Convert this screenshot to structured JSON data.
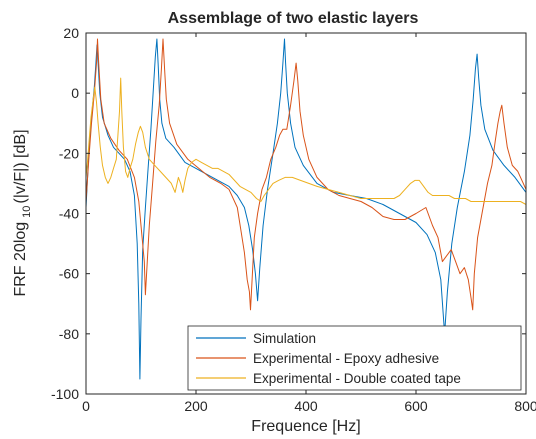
{
  "chart_data": {
    "type": "line",
    "title": "Assemblage of two elastic layers",
    "xlabel": "Frequence [Hz]",
    "ylabel": "FRF 20log",
    "ylabel_sub": "10",
    "ylabel_tail": "(|v/F|) [dB]",
    "xlim": [
      0,
      800
    ],
    "ylim": [
      -100,
      20
    ],
    "xticks": [
      0,
      200,
      400,
      600,
      800
    ],
    "yticks": [
      -100,
      -80,
      -60,
      -40,
      -20,
      0,
      20
    ],
    "grid": false,
    "legend_position": "bottom-right",
    "series": [
      {
        "name": "Simulation",
        "color": "#0072bd",
        "points": [
          [
            0,
            -38
          ],
          [
            5,
            -20
          ],
          [
            10,
            -8
          ],
          [
            15,
            2
          ],
          [
            18,
            10
          ],
          [
            20,
            16
          ],
          [
            22,
            10
          ],
          [
            25,
            0
          ],
          [
            30,
            -8
          ],
          [
            40,
            -14
          ],
          [
            50,
            -18
          ],
          [
            60,
            -20
          ],
          [
            70,
            -22
          ],
          [
            80,
            -26
          ],
          [
            88,
            -34
          ],
          [
            93,
            -50
          ],
          [
            96,
            -70
          ],
          [
            98,
            -95
          ],
          [
            100,
            -75
          ],
          [
            103,
            -52
          ],
          [
            108,
            -38
          ],
          [
            113,
            -25
          ],
          [
            118,
            -12
          ],
          [
            122,
            0
          ],
          [
            126,
            12
          ],
          [
            129,
            18
          ],
          [
            131,
            10
          ],
          [
            134,
            -2
          ],
          [
            138,
            -10
          ],
          [
            145,
            -15
          ],
          [
            160,
            -18
          ],
          [
            180,
            -23
          ],
          [
            200,
            -25
          ],
          [
            220,
            -27
          ],
          [
            240,
            -29
          ],
          [
            260,
            -31
          ],
          [
            275,
            -34
          ],
          [
            288,
            -38
          ],
          [
            296,
            -44
          ],
          [
            303,
            -52
          ],
          [
            308,
            -60
          ],
          [
            312,
            -69
          ],
          [
            316,
            -58
          ],
          [
            322,
            -44
          ],
          [
            330,
            -32
          ],
          [
            340,
            -20
          ],
          [
            348,
            -10
          ],
          [
            354,
            0
          ],
          [
            358,
            10
          ],
          [
            361,
            18
          ],
          [
            363,
            10
          ],
          [
            366,
            0
          ],
          [
            372,
            -10
          ],
          [
            380,
            -18
          ],
          [
            395,
            -24
          ],
          [
            420,
            -30
          ],
          [
            450,
            -33
          ],
          [
            480,
            -34
          ],
          [
            510,
            -35
          ],
          [
            540,
            -37
          ],
          [
            570,
            -40
          ],
          [
            600,
            -43
          ],
          [
            620,
            -47
          ],
          [
            635,
            -53
          ],
          [
            645,
            -62
          ],
          [
            652,
            -80
          ],
          [
            657,
            -66
          ],
          [
            665,
            -50
          ],
          [
            675,
            -38
          ],
          [
            688,
            -26
          ],
          [
            698,
            -14
          ],
          [
            704,
            -2
          ],
          [
            708,
            8
          ],
          [
            711,
            13
          ],
          [
            714,
            5
          ],
          [
            718,
            -4
          ],
          [
            725,
            -12
          ],
          [
            740,
            -19
          ],
          [
            760,
            -24
          ],
          [
            780,
            -28
          ],
          [
            800,
            -33
          ]
        ]
      },
      {
        "name": "Experimental - Epoxy adhesive",
        "color": "#d95319",
        "points": [
          [
            0,
            -36
          ],
          [
            5,
            -22
          ],
          [
            10,
            -10
          ],
          [
            15,
            0
          ],
          [
            19,
            10
          ],
          [
            21,
            18
          ],
          [
            23,
            10
          ],
          [
            27,
            -2
          ],
          [
            33,
            -10
          ],
          [
            45,
            -15
          ],
          [
            60,
            -19
          ],
          [
            75,
            -22
          ],
          [
            88,
            -28
          ],
          [
            96,
            -36
          ],
          [
            102,
            -48
          ],
          [
            106,
            -56
          ],
          [
            108,
            -67
          ],
          [
            111,
            -57
          ],
          [
            115,
            -44
          ],
          [
            121,
            -30
          ],
          [
            127,
            -16
          ],
          [
            133,
            -4
          ],
          [
            137,
            8
          ],
          [
            140,
            18
          ],
          [
            143,
            8
          ],
          [
            146,
            -2
          ],
          [
            152,
            -10
          ],
          [
            165,
            -17
          ],
          [
            185,
            -22
          ],
          [
            205,
            -25
          ],
          [
            225,
            -28
          ],
          [
            245,
            -30
          ],
          [
            260,
            -32
          ],
          [
            275,
            -38
          ],
          [
            282,
            -46
          ],
          [
            288,
            -53
          ],
          [
            293,
            -62
          ],
          [
            297,
            -66
          ],
          [
            299,
            -72
          ],
          [
            302,
            -62
          ],
          [
            306,
            -48
          ],
          [
            312,
            -40
          ],
          [
            320,
            -32
          ],
          [
            328,
            -28
          ],
          [
            336,
            -22
          ],
          [
            345,
            -18
          ],
          [
            352,
            -14
          ],
          [
            358,
            -12
          ],
          [
            365,
            -12
          ],
          [
            372,
            -4
          ],
          [
            378,
            4
          ],
          [
            382,
            10
          ],
          [
            385,
            4
          ],
          [
            389,
            -6
          ],
          [
            395,
            -14
          ],
          [
            405,
            -22
          ],
          [
            420,
            -28
          ],
          [
            440,
            -32
          ],
          [
            460,
            -34
          ],
          [
            480,
            -35
          ],
          [
            500,
            -36
          ],
          [
            520,
            -38
          ],
          [
            540,
            -41
          ],
          [
            560,
            -42
          ],
          [
            580,
            -42
          ],
          [
            600,
            -40
          ],
          [
            618,
            -38
          ],
          [
            630,
            -44
          ],
          [
            640,
            -48
          ],
          [
            648,
            -56
          ],
          [
            656,
            -54
          ],
          [
            664,
            -52
          ],
          [
            672,
            -56
          ],
          [
            680,
            -60
          ],
          [
            688,
            -58
          ],
          [
            695,
            -62
          ],
          [
            700,
            -68
          ],
          [
            703,
            -72
          ],
          [
            706,
            -60
          ],
          [
            712,
            -48
          ],
          [
            720,
            -40
          ],
          [
            730,
            -30
          ],
          [
            738,
            -24
          ],
          [
            744,
            -16
          ],
          [
            749,
            -10
          ],
          [
            753,
            -6
          ],
          [
            756,
            -4
          ],
          [
            760,
            -10
          ],
          [
            766,
            -18
          ],
          [
            775,
            -24
          ],
          [
            785,
            -26
          ],
          [
            795,
            -30
          ],
          [
            800,
            -32
          ]
        ]
      },
      {
        "name": "Experimental - Double coated tape",
        "color": "#edb120",
        "points": [
          [
            0,
            -28
          ],
          [
            3,
            -22
          ],
          [
            6,
            -15
          ],
          [
            9,
            -8
          ],
          [
            13,
            -2
          ],
          [
            16,
            2
          ],
          [
            19,
            -3
          ],
          [
            22,
            -10
          ],
          [
            26,
            -18
          ],
          [
            30,
            -24
          ],
          [
            35,
            -28
          ],
          [
            40,
            -30
          ],
          [
            45,
            -28
          ],
          [
            50,
            -25
          ],
          [
            55,
            -22
          ],
          [
            58,
            -14
          ],
          [
            61,
            -6
          ],
          [
            63,
            5
          ],
          [
            65,
            -6
          ],
          [
            68,
            -18
          ],
          [
            72,
            -26
          ],
          [
            76,
            -28
          ],
          [
            80,
            -25
          ],
          [
            85,
            -22
          ],
          [
            90,
            -17
          ],
          [
            95,
            -13
          ],
          [
            99,
            -11
          ],
          [
            103,
            -13
          ],
          [
            108,
            -18
          ],
          [
            115,
            -22
          ],
          [
            125,
            -24
          ],
          [
            135,
            -26
          ],
          [
            145,
            -28
          ],
          [
            155,
            -30
          ],
          [
            162,
            -33
          ],
          [
            168,
            -28
          ],
          [
            172,
            -30
          ],
          [
            176,
            -33
          ],
          [
            180,
            -29
          ],
          [
            185,
            -25
          ],
          [
            192,
            -23
          ],
          [
            200,
            -22
          ],
          [
            210,
            -23
          ],
          [
            220,
            -24
          ],
          [
            230,
            -25
          ],
          [
            240,
            -25
          ],
          [
            250,
            -26
          ],
          [
            260,
            -27
          ],
          [
            270,
            -29
          ],
          [
            280,
            -31
          ],
          [
            290,
            -32
          ],
          [
            300,
            -33
          ],
          [
            310,
            -35
          ],
          [
            318,
            -36
          ],
          [
            324,
            -34
          ],
          [
            332,
            -32
          ],
          [
            340,
            -30
          ],
          [
            350,
            -29
          ],
          [
            362,
            -28
          ],
          [
            375,
            -28
          ],
          [
            390,
            -29
          ],
          [
            405,
            -30
          ],
          [
            420,
            -31
          ],
          [
            440,
            -32
          ],
          [
            460,
            -33
          ],
          [
            480,
            -34
          ],
          [
            500,
            -35
          ],
          [
            515,
            -35
          ],
          [
            530,
            -35
          ],
          [
            545,
            -35
          ],
          [
            560,
            -35
          ],
          [
            570,
            -34
          ],
          [
            580,
            -32
          ],
          [
            590,
            -30
          ],
          [
            598,
            -29
          ],
          [
            606,
            -29
          ],
          [
            614,
            -31
          ],
          [
            622,
            -33
          ],
          [
            630,
            -34
          ],
          [
            640,
            -34
          ],
          [
            650,
            -34
          ],
          [
            660,
            -34
          ],
          [
            670,
            -35
          ],
          [
            680,
            -35
          ],
          [
            690,
            -35
          ],
          [
            700,
            -36
          ],
          [
            710,
            -36
          ],
          [
            720,
            -36
          ],
          [
            730,
            -36
          ],
          [
            740,
            -36
          ],
          [
            750,
            -36
          ],
          [
            760,
            -36
          ],
          [
            770,
            -36
          ],
          [
            780,
            -36
          ],
          [
            790,
            -36
          ],
          [
            800,
            -37
          ]
        ]
      }
    ]
  }
}
